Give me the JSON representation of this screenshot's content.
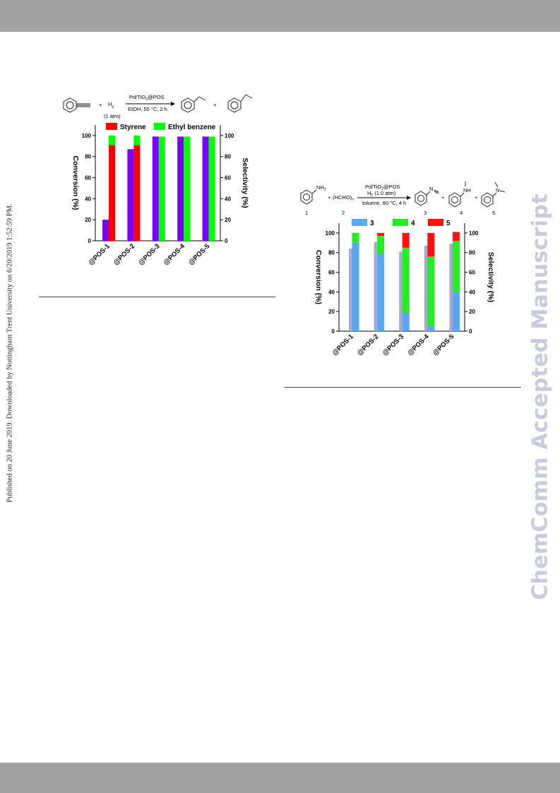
{
  "page": {
    "side_note": "Published on 20 June 2019. Downloaded by Nottingham Trent University on 6/20/2019 1:52:59 PM.",
    "watermark": "ChemComm Accepted Manuscript"
  },
  "scheme1": {
    "plus1": "+",
    "reagent": "H",
    "reagent_sub": "2",
    "pressure": "(1 atm)",
    "catalyst": "Pd/TiO",
    "catalyst_sub": "2",
    "catalyst_rest": "@POS",
    "conditions": "EtOH, 50 °C, 2 h",
    "plus2": "+"
  },
  "scheme2": {
    "amine_label": "NH",
    "amine_sub": "2",
    "plus1": "+",
    "reagent": "(HCHO)",
    "reagent_sub": "n",
    "catalyst": "Pd/TiO",
    "catalyst_sub": "2",
    "catalyst_rest": "@POS",
    "gas": "H",
    "gas_sub": "2",
    "gas_rest": " (1.0 atm)",
    "conditions": "toluene, 80 °C, 4 h",
    "imine_label": "N",
    "nh_label": "NH",
    "n_label": "N",
    "plus2": "+",
    "plus3": "+",
    "num1": "1",
    "num2": "2",
    "num3": "3",
    "num4": "4",
    "num5": "5"
  },
  "chart_data": [
    {
      "type": "bar",
      "categories": [
        "@POS-1",
        "@POS-2",
        "@POS-3",
        "@POS-4",
        "@POS-5"
      ],
      "ylabel": "Conversion (%)",
      "y2label": "Selectivity (%)",
      "ylim": [
        0,
        110
      ],
      "y2lim": [
        0,
        110
      ],
      "yticks": [
        0,
        20,
        40,
        60,
        80,
        100
      ],
      "conversion": {
        "color": "#7a00ff",
        "values": [
          20,
          87,
          99,
          99,
          99
        ]
      },
      "selectivity": [
        {
          "name": "Styrene",
          "color": "#ff0000",
          "values": [
            91,
            91,
            0,
            0,
            0
          ]
        },
        {
          "name": "Ethyl benzene",
          "color": "#00ff00",
          "values": [
            9,
            9,
            99,
            99,
            99
          ]
        }
      ],
      "legend": "top",
      "grid": false
    },
    {
      "type": "bar",
      "categories": [
        "@POS-1",
        "@POS-2",
        "@POS-3",
        "@POS-4",
        "@POS-5"
      ],
      "ylabel": "Conversion (%)",
      "y2label": "Selectivity (%)",
      "ylim": [
        0,
        110
      ],
      "y2lim": [
        0,
        110
      ],
      "yticks": [
        0,
        20,
        40,
        60,
        80,
        100
      ],
      "conversion": {
        "color": "#a9a9d0",
        "values": [
          84,
          91,
          81,
          87,
          89
        ]
      },
      "selectivity": [
        {
          "name": "3",
          "color": "#5aa6f0",
          "values": [
            90,
            79,
            19,
            5,
            40
          ]
        },
        {
          "name": "4",
          "color": "#22ee22",
          "values": [
            10,
            18,
            66,
            71,
            52
          ]
        },
        {
          "name": "5",
          "color": "#ff1111",
          "values": [
            0,
            3,
            15,
            24,
            9
          ]
        }
      ],
      "legend": "top",
      "grid": false
    }
  ]
}
